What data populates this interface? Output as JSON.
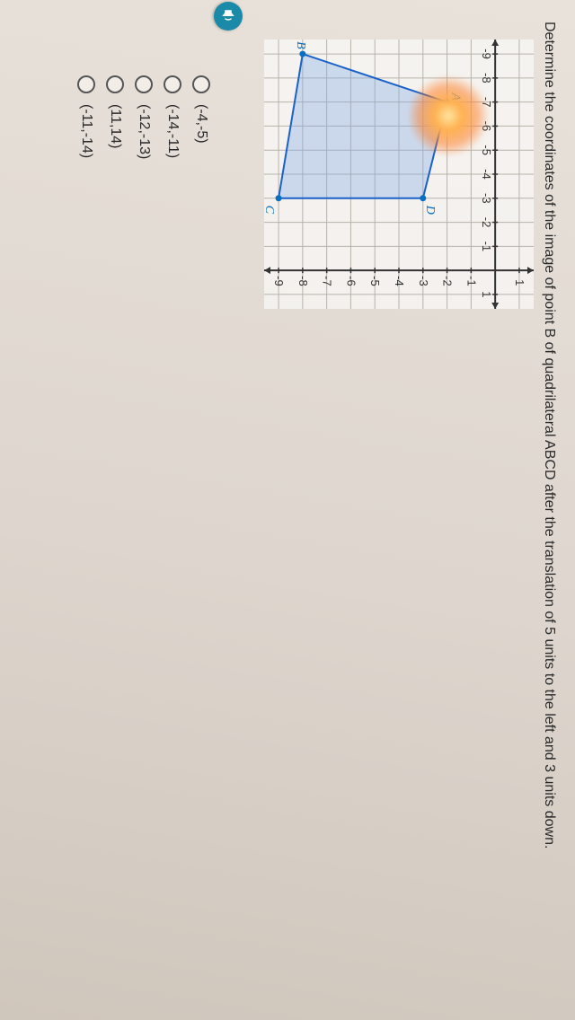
{
  "question": "Determine the coordinates of the image of point B of quadrilateral ABCD after the translation of 5 units to the left and 3 units down.",
  "graph": {
    "x_ticks": [
      -9,
      -8,
      -7,
      -6,
      -5,
      -4,
      -3,
      -2,
      -1,
      1
    ],
    "y_ticks_pos": [
      1
    ],
    "y_ticks_neg": [
      -1,
      -2,
      -3,
      -4,
      -5,
      -6,
      -7,
      -8,
      -9
    ],
    "polygon": {
      "A": [
        -7,
        -2
      ],
      "B": [
        -9,
        -8
      ],
      "C": [
        -3,
        -9
      ],
      "D": [
        -3,
        -3
      ]
    },
    "axis_color": "#333333",
    "grid_color": "#b7b2aa",
    "poly_fill": "#7fa8e8",
    "poly_fill_opacity": 0.35,
    "poly_stroke": "#1a61c9",
    "point_color": "#0a6fc2"
  },
  "options": [
    "(-4,-5)",
    "(-14,-11)",
    "(-12,-13)",
    "(11,14)",
    "(-11,-14)"
  ]
}
